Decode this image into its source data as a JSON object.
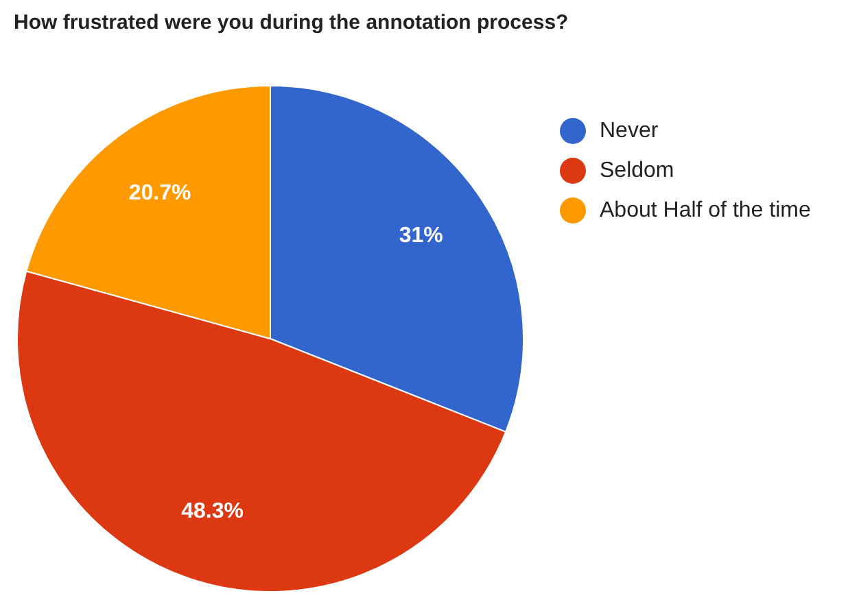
{
  "chart_data": {
    "type": "pie",
    "title": "How frustrated were you during the annotation process?",
    "categories": [
      "Never",
      "Seldom",
      "About Half of the time"
    ],
    "values": [
      31,
      48.3,
      20.7
    ],
    "value_labels": [
      "31%",
      "48.3%",
      "20.7%"
    ],
    "colors": [
      "#3366cc",
      "#dc3912",
      "#ff9900"
    ],
    "legend": "right"
  }
}
